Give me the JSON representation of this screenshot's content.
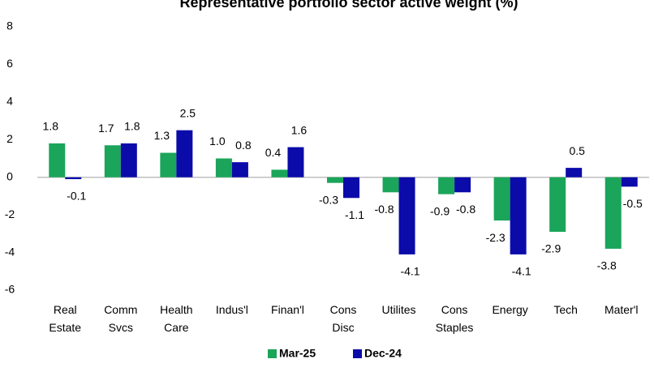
{
  "chart_data": {
    "type": "bar",
    "title": "Representative portfolio sector active weight (%)",
    "categories": [
      "Real Estate",
      "Comm Svcs",
      "Health Care",
      "Indus'l",
      "Finan'l",
      "Cons Disc",
      "Utilites",
      "Cons Staples",
      "Energy",
      "Tech",
      "Mater'l"
    ],
    "series": [
      {
        "name": "Mar-25",
        "color": "#1aa55a",
        "values": [
          1.8,
          1.7,
          1.3,
          1.0,
          0.4,
          -0.3,
          -0.8,
          -0.9,
          -2.3,
          -2.9,
          -3.8
        ],
        "value_labels": [
          "1.8",
          "1.7",
          "1.3",
          "1.0",
          "0.4",
          "-0.3",
          "-0.8",
          "-0.9",
          "-2.3",
          "-2.9",
          "-3.8"
        ]
      },
      {
        "name": "Dec-24",
        "color": "#0b0baa",
        "values": [
          -0.1,
          1.8,
          2.5,
          0.8,
          1.6,
          -1.1,
          -4.1,
          -0.8,
          -4.1,
          0.5,
          -0.5
        ],
        "value_labels": [
          "-0.1",
          "1.8",
          "2.5",
          "0.8",
          "1.6",
          "-1.1",
          "-4.1",
          "-0.8",
          "-4.1",
          "0.5",
          "-0.5"
        ]
      }
    ],
    "ylim": [
      -6,
      8
    ],
    "yticks": [
      -6,
      -4,
      -2,
      0,
      2,
      4,
      6,
      8
    ],
    "legend": "bottom"
  }
}
